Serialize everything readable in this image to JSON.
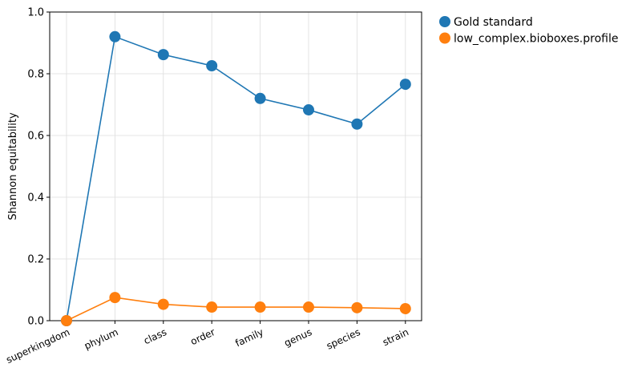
{
  "chart_data": {
    "type": "line",
    "title": "",
    "xlabel": "",
    "ylabel": "Shannon equitability",
    "categories": [
      "superkingdom",
      "phylum",
      "class",
      "order",
      "family",
      "genus",
      "species",
      "strain"
    ],
    "ylim": [
      0,
      1
    ],
    "yticks": [
      "0.0",
      "0.2",
      "0.4",
      "0.6",
      "0.8",
      "1.0"
    ],
    "grid": true,
    "legend_position": "outside-top-right",
    "series": [
      {
        "name": "Gold standard",
        "color": "#1f77b4",
        "values": [
          0.0,
          0.92,
          0.862,
          0.826,
          0.72,
          0.683,
          0.637,
          0.766
        ]
      },
      {
        "name": "low_complex.bioboxes.profile",
        "color": "#ff7f0e",
        "values": [
          0.0,
          0.075,
          0.053,
          0.044,
          0.044,
          0.044,
          0.042,
          0.039
        ]
      }
    ]
  }
}
